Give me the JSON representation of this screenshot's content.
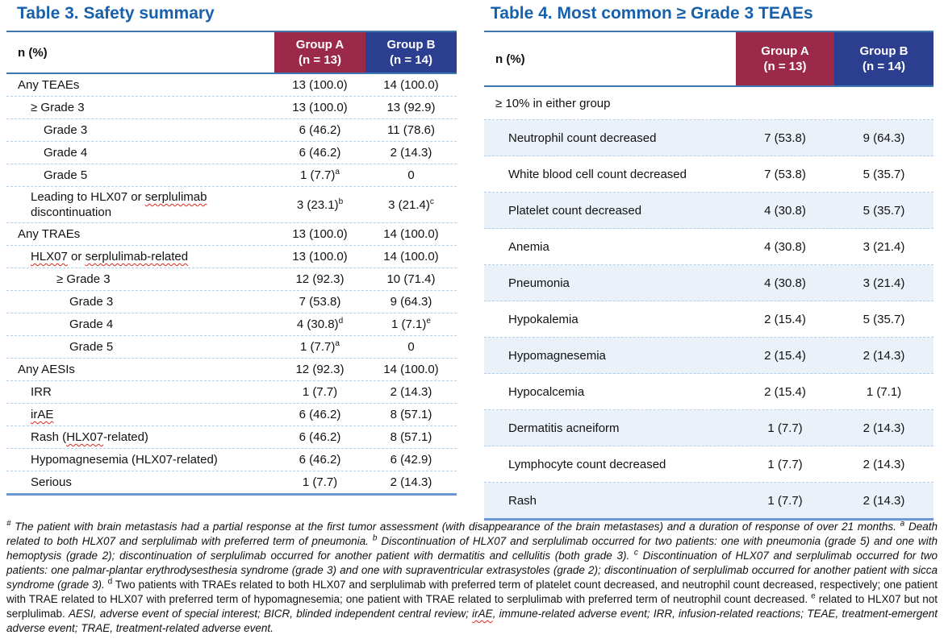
{
  "colors": {
    "title_blue": "#1760AC",
    "group_a_red": "#9B2A4A",
    "group_b_blue": "#2C3E8F",
    "rule_blue": "#3D76B3",
    "bottom_rule_blue": "#6B96D8",
    "row_separator_blue": "#AFCFEC",
    "row_stripe_blue": "#EAF1F9",
    "squiggle_red": "#E0281E",
    "text_black": "#111111"
  },
  "table3": {
    "title": "Table 3. Safety summary",
    "col_label": "n (%)",
    "group_a": {
      "name": "Group A",
      "n": "(n = 13)"
    },
    "group_b": {
      "name": "Group B",
      "n": "(n = 14)"
    },
    "rows": [
      {
        "label": "Any TEAEs",
        "indent": 0,
        "a": "13 (100.0)",
        "b": "14 (100.0)"
      },
      {
        "label": "≥ Grade 3",
        "indent": 1,
        "a": "13 (100.0)",
        "b": "13 (92.9)"
      },
      {
        "label": "Grade 3",
        "indent": 2,
        "a": "6 (46.2)",
        "b": "11 (78.6)"
      },
      {
        "label": "Grade 4",
        "indent": 2,
        "a": "6 (46.2)",
        "b": "2 (14.3)"
      },
      {
        "label": "Grade 5",
        "indent": 2,
        "a": "1 (7.7)",
        "a_sup": "a",
        "b": "0"
      },
      {
        "label": "Leading to HLX07 or serplulimab discontinuation",
        "indent": 1,
        "a": "3 (23.1)",
        "a_sup": "b",
        "b": "3 (21.4)",
        "b_sup": "c",
        "squiggle": [
          "serplulimab"
        ]
      },
      {
        "label": "Any TRAEs",
        "indent": 0,
        "a": "13 (100.0)",
        "b": "14 (100.0)"
      },
      {
        "label": "HLX07 or serplulimab-related",
        "indent": 1,
        "a": "13 (100.0)",
        "b": "14 (100.0)",
        "squiggle": [
          "HLX07",
          "serplulimab-related"
        ]
      },
      {
        "label": "≥ Grade 3",
        "indent": 3,
        "a": "12 (92.3)",
        "b": "10 (71.4)"
      },
      {
        "label": "Grade 3",
        "indent": 4,
        "a": "7 (53.8)",
        "b": "9 (64.3)"
      },
      {
        "label": "Grade 4",
        "indent": 4,
        "a": "4 (30.8)",
        "a_sup": "d",
        "b": "1 (7.1)",
        "b_sup": "e"
      },
      {
        "label": "Grade 5",
        "indent": 4,
        "a": "1 (7.7)",
        "a_sup": "a",
        "b": "0"
      },
      {
        "label": "Any AESIs",
        "indent": 0,
        "a": "12 (92.3)",
        "b": "14 (100.0)"
      },
      {
        "label": "IRR",
        "indent": 1,
        "a": "1 (7.7)",
        "b": "2 (14.3)"
      },
      {
        "label": "irAE",
        "indent": 1,
        "a": "6 (46.2)",
        "b": "8 (57.1)",
        "squiggle": [
          "irAE"
        ]
      },
      {
        "label": "Rash (HLX07-related)",
        "indent": 1,
        "a": "6 (46.2)",
        "b": "8 (57.1)",
        "squiggle": [
          "HLX07"
        ]
      },
      {
        "label": "Hypomagnesemia (HLX07-related)",
        "indent": 1,
        "a": "6 (46.2)",
        "b": "6 (42.9)"
      },
      {
        "label": "Serious",
        "indent": 1,
        "a": "1 (7.7)",
        "b": "2 (14.3)"
      }
    ]
  },
  "table4": {
    "title": "Table 4. Most common ≥ Grade 3 TEAEs",
    "col_label": "n (%)",
    "group_a": {
      "name": "Group A",
      "n": "(n = 13)"
    },
    "group_b": {
      "name": "Group B",
      "n": "(n = 14)"
    },
    "subheader": "≥ 10% in either group",
    "rows": [
      {
        "label": "Neutrophil count decreased",
        "indent": 1,
        "a": "7 (53.8)",
        "b": "9 (64.3)"
      },
      {
        "label": "White blood cell count decreased",
        "indent": 1,
        "a": "7 (53.8)",
        "b": "5 (35.7)"
      },
      {
        "label": "Platelet count decreased",
        "indent": 1,
        "a": "4 (30.8)",
        "b": "5 (35.7)"
      },
      {
        "label": "Anemia",
        "indent": 1,
        "a": "4 (30.8)",
        "b": "3 (21.4)"
      },
      {
        "label": "Pneumonia",
        "indent": 1,
        "a": "4 (30.8)",
        "b": "3 (21.4)"
      },
      {
        "label": "Hypokalemia",
        "indent": 1,
        "a": "2 (15.4)",
        "b": "5 (35.7)"
      },
      {
        "label": "Hypomagnesemia",
        "indent": 1,
        "a": "2 (15.4)",
        "b": "2 (14.3)"
      },
      {
        "label": "Hypocalcemia",
        "indent": 1,
        "a": "2 (15.4)",
        "b": "1 (7.1)"
      },
      {
        "label": "Dermatitis acneiform",
        "indent": 1,
        "a": "1 (7.7)",
        "b": "2 (14.3)"
      },
      {
        "label": "Lymphocyte count decreased",
        "indent": 1,
        "a": "1 (7.7)",
        "b": "2 (14.3)"
      },
      {
        "label": "Rash",
        "indent": 1,
        "a": "1 (7.7)",
        "b": "2 (14.3)"
      }
    ]
  },
  "footnote": {
    "segments": [
      {
        "t": "#",
        "sup": true,
        "italic": true
      },
      {
        "t": " The patient with brain metastasis had a partial response at the first tumor assessment (with disappearance of the brain metastases) and a duration of response of over 21 months. ",
        "italic": true
      },
      {
        "t": "a",
        "sup": true,
        "italic": true
      },
      {
        "t": " Death related to both HLX07 and serplulimab with preferred term of pneumonia. ",
        "italic": true
      },
      {
        "t": "b",
        "sup": true,
        "italic": true
      },
      {
        "t": " Discontinuation of HLX07 and serplulimab occurred for two patients: one with pneumonia (grade 5) and one with hemoptysis (grade 2); discontinuation of serplulimab occurred for another patient with dermatitis and cellulitis (both grade 3). ",
        "italic": true
      },
      {
        "t": "c",
        "sup": true,
        "italic": true
      },
      {
        "t": " Discontinuation of HLX07 and serplulimab occurred for two patients: one palmar-plantar erythrodysesthesia syndrome (grade 3) and one with supraventricular extrasystoles (grade 2); discontinuation of serplulimab occurred for another patient with sicca syndrome (grade 3). ",
        "italic": true
      },
      {
        "t": "d",
        "sup": true,
        "italic": false
      },
      {
        "t": " Two patients with TRAEs related to both HLX07 and serplulimab with preferred term of platelet count decreased, and neutrophil count decreased, respectively; one patient with TRAE related to HLX07 with preferred term of hypomagnesemia; one patient with TRAE related to serplulimab with preferred term of neutrophil count decreased. ",
        "italic": false
      },
      {
        "t": "e",
        "sup": true,
        "italic": false
      },
      {
        "t": " related to HLX07 but not serplulimab. ",
        "italic": false
      },
      {
        "t": "AESI, adverse event of special interest; BICR, blinded independent central review; ",
        "italic": true
      },
      {
        "t": "irAE",
        "italic": true,
        "sq": true
      },
      {
        "t": ", immune-related adverse event; IRR, infusion-related reactions; TEAE, treatment-emergent adverse event; TRAE, treatment-related adverse event.",
        "italic": true
      }
    ]
  }
}
